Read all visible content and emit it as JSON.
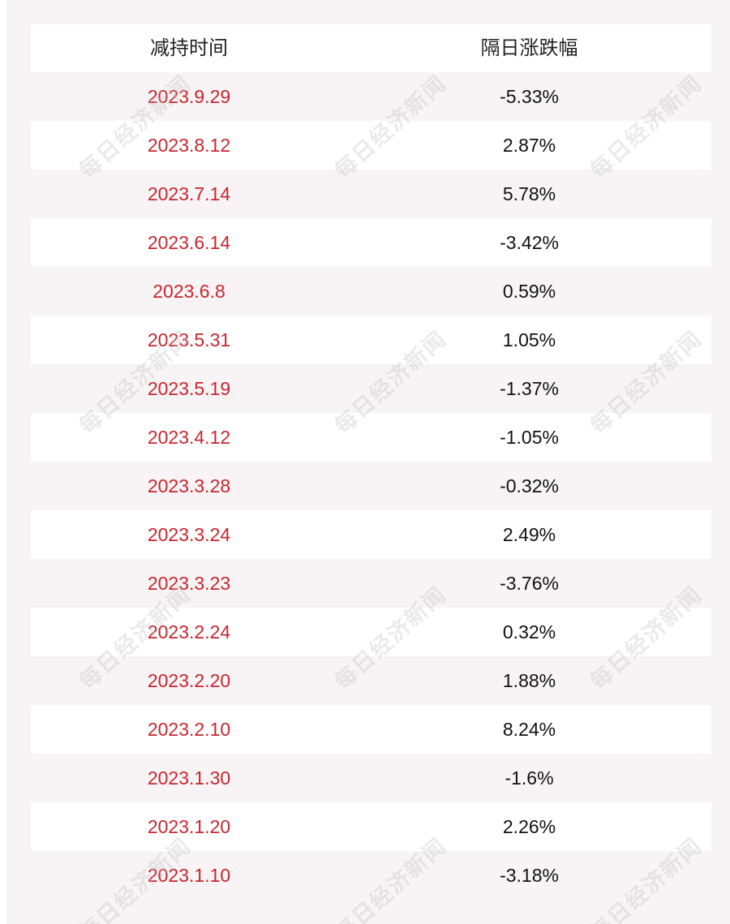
{
  "table": {
    "headers": {
      "date": "减持时间",
      "change": "隔日涨跌幅"
    },
    "rows": [
      {
        "date": "2023.9.29",
        "change": "-5.33%"
      },
      {
        "date": "2023.8.12",
        "change": "2.87%"
      },
      {
        "date": "2023.7.14",
        "change": "5.78%"
      },
      {
        "date": "2023.6.14",
        "change": "-3.42%"
      },
      {
        "date": "2023.6.8",
        "change": "0.59%"
      },
      {
        "date": "2023.5.31",
        "change": "1.05%"
      },
      {
        "date": "2023.5.19",
        "change": "-1.37%"
      },
      {
        "date": "2023.4.12",
        "change": "-1.05%"
      },
      {
        "date": "2023.3.28",
        "change": "-0.32%"
      },
      {
        "date": "2023.3.24",
        "change": "2.49%"
      },
      {
        "date": "2023.3.23",
        "change": "-3.76%"
      },
      {
        "date": "2023.2.24",
        "change": "0.32%"
      },
      {
        "date": "2023.2.20",
        "change": "1.88%"
      },
      {
        "date": "2023.2.10",
        "change": "8.24%"
      },
      {
        "date": "2023.1.30",
        "change": "-1.6%"
      },
      {
        "date": "2023.1.20",
        "change": "2.26%"
      },
      {
        "date": "2023.1.10",
        "change": "-3.18%"
      }
    ]
  },
  "watermark": {
    "text": "每日经济新闻",
    "color": "#bebebe"
  },
  "colors": {
    "date_text": "#c8262f",
    "value_text": "#111111",
    "tinted_row": "#f8f4f5",
    "white_row": "#ffffff"
  }
}
